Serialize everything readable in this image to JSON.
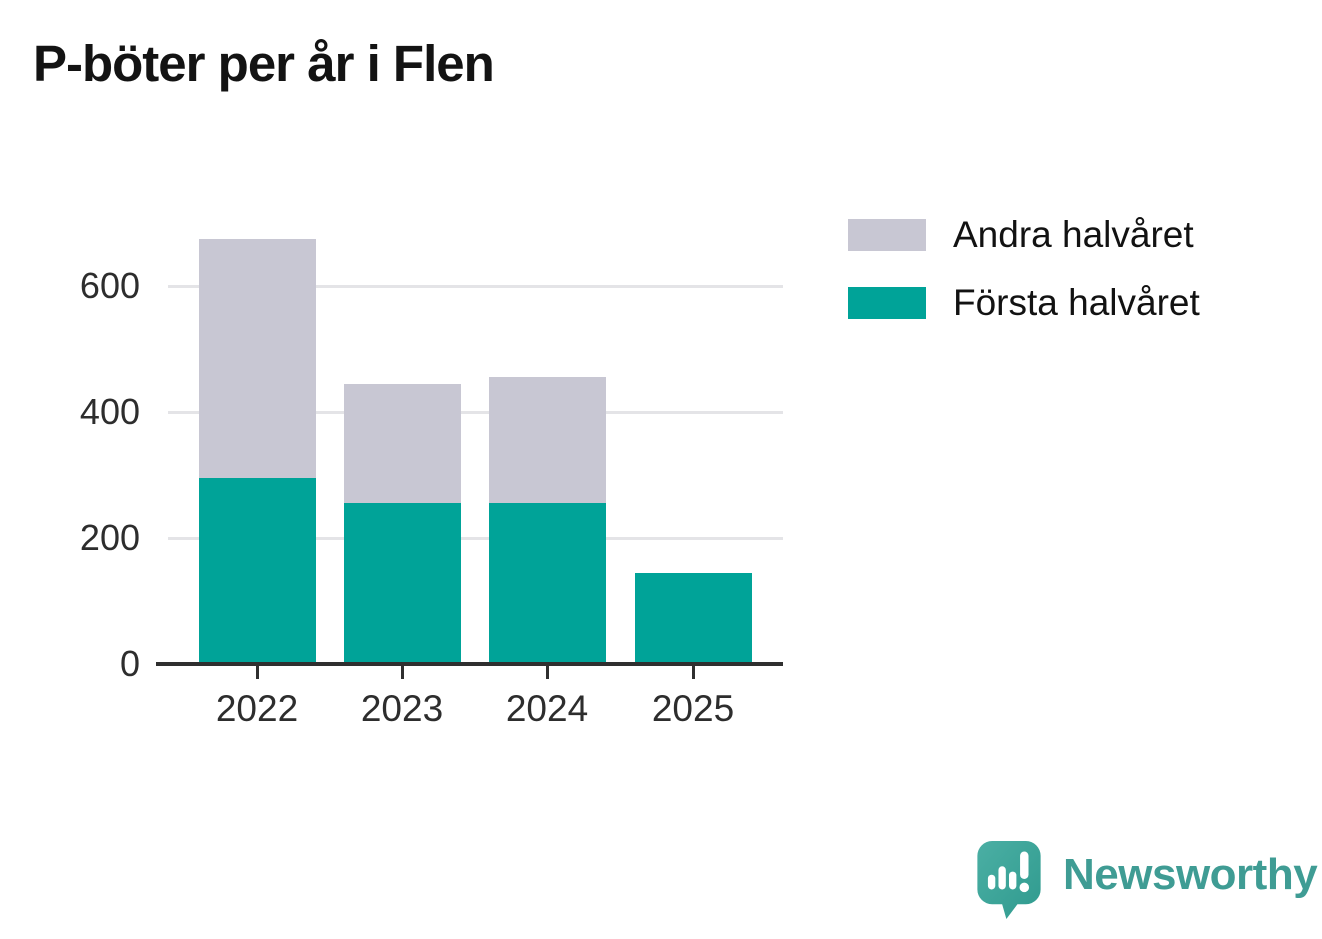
{
  "title": "P-böter per år i Flen",
  "chart_data": {
    "type": "bar",
    "stacked": true,
    "title": "P-böter per år i Flen",
    "categories": [
      "2022",
      "2023",
      "2024",
      "2025"
    ],
    "series": [
      {
        "name": "Första halvåret",
        "color": "#00a398",
        "values": [
          295,
          255,
          255,
          145
        ]
      },
      {
        "name": "Andra halvåret",
        "color": "#c8c7d3",
        "values": [
          380,
          190,
          200,
          0
        ]
      }
    ],
    "xlabel": "",
    "ylabel": "",
    "y_ticks": [
      0,
      200,
      400,
      600
    ],
    "ylim": [
      0,
      700
    ],
    "grid": "horizontal",
    "legend_position": "right",
    "axis_color": "#2f2f2f",
    "grid_color": "#e4e4e7",
    "tick_label_color": "#2d2d2d"
  },
  "legend": {
    "items": [
      {
        "label": "Andra halvåret",
        "color": "#c8c7d3"
      },
      {
        "label": "Första halvåret",
        "color": "#00a398"
      }
    ]
  },
  "branding": {
    "name": "Newsworthy",
    "text_color": "#3f9c94",
    "icon": "newsworthy-speech-bubble-chart-icon",
    "icon_color_top": "#4bafa4",
    "icon_color_bottom": "#2f9a8e"
  }
}
